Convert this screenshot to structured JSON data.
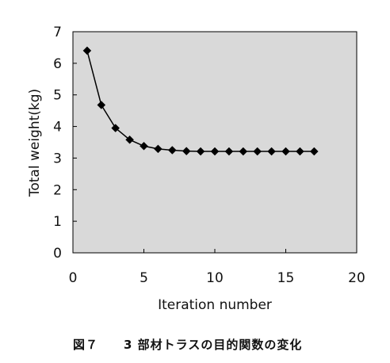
{
  "figure": {
    "caption": "図７　　3 部材トラスの目的関数の変化"
  },
  "chart_data": {
    "type": "line",
    "title": "",
    "xlabel": "Iteration number",
    "ylabel": "Total weight(kg)",
    "xlim": [
      0,
      20
    ],
    "ylim": [
      0,
      7
    ],
    "xticks": [
      0,
      5,
      10,
      15,
      20
    ],
    "yticks": [
      0,
      1,
      2,
      3,
      4,
      5,
      6,
      7
    ],
    "grid": false,
    "plot_background": "#d9d9d9",
    "marker": "diamond",
    "line_color": "#000000",
    "series": [
      {
        "x": [
          1,
          2,
          3,
          4,
          5,
          6,
          7,
          8,
          9,
          10,
          11,
          12,
          13,
          14,
          15,
          16,
          17
        ],
        "values": [
          6.4,
          4.68,
          3.95,
          3.58,
          3.38,
          3.29,
          3.25,
          3.22,
          3.21,
          3.21,
          3.21,
          3.21,
          3.21,
          3.21,
          3.21,
          3.21,
          3.21
        ]
      }
    ]
  }
}
